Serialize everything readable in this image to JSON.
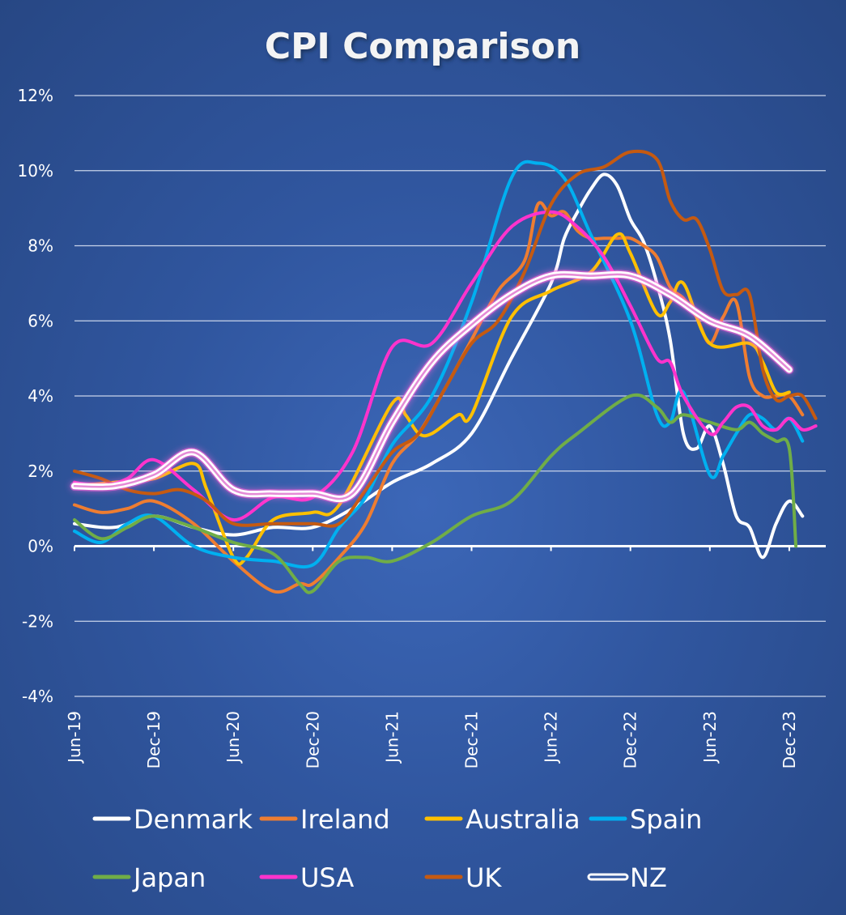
{
  "chart_data": {
    "type": "line",
    "title": "CPI Comparison",
    "xlabel": "",
    "ylabel": "",
    "ylim": [
      -4,
      12
    ],
    "y_ticks": [
      -4,
      -2,
      0,
      2,
      4,
      6,
      8,
      10,
      12
    ],
    "y_tick_labels": [
      "-4%",
      "-2%",
      "0%",
      "2%",
      "4%",
      "6%",
      "8%",
      "10%",
      "12%"
    ],
    "x_tick_labels": [
      "Jun-19",
      "Dec-19",
      "Jun-20",
      "Dec-20",
      "Jun-21",
      "Dec-21",
      "Jun-22",
      "Dec-22",
      "Jun-23",
      "Dec-23"
    ],
    "x_ticks_months_from_jun19": [
      0,
      6,
      12,
      18,
      24,
      30,
      36,
      42,
      48,
      54
    ],
    "x_range_months": [
      0,
      57
    ],
    "grid": "horizontal",
    "legend_position": "bottom",
    "series": [
      {
        "name": "Denmark",
        "color": "#ffffff",
        "points": [
          [
            0,
            0.6
          ],
          [
            3,
            0.5
          ],
          [
            6,
            0.8
          ],
          [
            9,
            0.5
          ],
          [
            12,
            0.3
          ],
          [
            15,
            0.5
          ],
          [
            18,
            0.5
          ],
          [
            21,
            1.0
          ],
          [
            24,
            1.7
          ],
          [
            27,
            2.2
          ],
          [
            30,
            3.0
          ],
          [
            33,
            5.0
          ],
          [
            36,
            7.0
          ],
          [
            37,
            8.2
          ],
          [
            38,
            8.9
          ],
          [
            39,
            9.5
          ],
          [
            40,
            9.9
          ],
          [
            41,
            9.6
          ],
          [
            42,
            8.7
          ],
          [
            43,
            8.1
          ],
          [
            44,
            7.0
          ],
          [
            45,
            5.5
          ],
          [
            46,
            3.0
          ],
          [
            47,
            2.6
          ],
          [
            48,
            3.2
          ],
          [
            49,
            2.2
          ],
          [
            50,
            0.8
          ],
          [
            51,
            0.5
          ],
          [
            52,
            -0.3
          ],
          [
            53,
            0.6
          ],
          [
            54,
            1.2
          ],
          [
            55,
            0.8
          ]
        ]
      },
      {
        "name": "Ireland",
        "color": "#ee7d31",
        "points": [
          [
            0,
            1.1
          ],
          [
            2,
            0.9
          ],
          [
            4,
            1.0
          ],
          [
            6,
            1.2
          ],
          [
            9,
            0.6
          ],
          [
            12,
            -0.4
          ],
          [
            15,
            -1.2
          ],
          [
            17,
            -1.0
          ],
          [
            18,
            -1.0
          ],
          [
            20,
            -0.3
          ],
          [
            22,
            0.6
          ],
          [
            24,
            2.2
          ],
          [
            26,
            3.0
          ],
          [
            28,
            4.2
          ],
          [
            30,
            5.5
          ],
          [
            32,
            6.8
          ],
          [
            34,
            7.6
          ],
          [
            35,
            9.1
          ],
          [
            36,
            8.8
          ],
          [
            37,
            8.9
          ],
          [
            38,
            8.4
          ],
          [
            39,
            8.2
          ],
          [
            40,
            8.2
          ],
          [
            41,
            8.2
          ],
          [
            42,
            8.2
          ],
          [
            43,
            8.0
          ],
          [
            44,
            7.7
          ],
          [
            45,
            6.9
          ],
          [
            46,
            6.6
          ],
          [
            47,
            6.1
          ],
          [
            48,
            5.4
          ],
          [
            49,
            6.1
          ],
          [
            50,
            6.5
          ],
          [
            51,
            4.5
          ],
          [
            52,
            4.0
          ],
          [
            53,
            4.0
          ],
          [
            54,
            4.0
          ],
          [
            55,
            3.5
          ]
        ]
      },
      {
        "name": "Australia",
        "color": "#ffc000",
        "points": [
          [
            0,
            1.6
          ],
          [
            3,
            1.7
          ],
          [
            6,
            1.8
          ],
          [
            9,
            2.2
          ],
          [
            10,
            1.5
          ],
          [
            12,
            -0.3
          ],
          [
            13,
            -0.3
          ],
          [
            15,
            0.7
          ],
          [
            18,
            0.9
          ],
          [
            20,
            1.1
          ],
          [
            24,
            3.8
          ],
          [
            25,
            3.5
          ],
          [
            26,
            3.0
          ],
          [
            27,
            3.0
          ],
          [
            29,
            3.5
          ],
          [
            30,
            3.5
          ],
          [
            33,
            6.1
          ],
          [
            36,
            6.8
          ],
          [
            39,
            7.3
          ],
          [
            41,
            8.3
          ],
          [
            42,
            7.8
          ],
          [
            44,
            6.2
          ],
          [
            45,
            6.5
          ],
          [
            46,
            7.0
          ],
          [
            48,
            5.4
          ],
          [
            51,
            5.4
          ],
          [
            52,
            4.9
          ],
          [
            53,
            4.1
          ],
          [
            54,
            4.1
          ]
        ]
      },
      {
        "name": "Spain",
        "color": "#00b0f0",
        "points": [
          [
            0,
            0.4
          ],
          [
            2,
            0.1
          ],
          [
            4,
            0.6
          ],
          [
            6,
            0.8
          ],
          [
            9,
            0.0
          ],
          [
            12,
            -0.3
          ],
          [
            15,
            -0.4
          ],
          [
            18,
            -0.5
          ],
          [
            20,
            0.5
          ],
          [
            22,
            1.3
          ],
          [
            24,
            2.7
          ],
          [
            27,
            4.0
          ],
          [
            30,
            6.5
          ],
          [
            33,
            9.8
          ],
          [
            35,
            10.2
          ],
          [
            37,
            9.8
          ],
          [
            39,
            8.3
          ],
          [
            42,
            6.0
          ],
          [
            44,
            3.5
          ],
          [
            45,
            3.3
          ],
          [
            46,
            4.1
          ],
          [
            48,
            1.9
          ],
          [
            49,
            2.4
          ],
          [
            50,
            3.0
          ],
          [
            51,
            3.5
          ],
          [
            52,
            3.4
          ],
          [
            53,
            3.1
          ],
          [
            54,
            3.4
          ],
          [
            55,
            2.8
          ]
        ]
      },
      {
        "name": "Japan",
        "color": "#70ad47",
        "points": [
          [
            0,
            0.7
          ],
          [
            2,
            0.2
          ],
          [
            4,
            0.5
          ],
          [
            6,
            0.8
          ],
          [
            9,
            0.5
          ],
          [
            12,
            0.1
          ],
          [
            15,
            -0.2
          ],
          [
            17,
            -1.0
          ],
          [
            18,
            -1.2
          ],
          [
            20,
            -0.4
          ],
          [
            22,
            -0.3
          ],
          [
            24,
            -0.4
          ],
          [
            27,
            0.1
          ],
          [
            30,
            0.8
          ],
          [
            33,
            1.2
          ],
          [
            36,
            2.4
          ],
          [
            38,
            3.0
          ],
          [
            42,
            4.0
          ],
          [
            44,
            3.7
          ],
          [
            45,
            3.3
          ],
          [
            46,
            3.5
          ],
          [
            48,
            3.3
          ],
          [
            50,
            3.1
          ],
          [
            51,
            3.3
          ],
          [
            52,
            3.0
          ],
          [
            53,
            2.8
          ],
          [
            54,
            2.6
          ],
          [
            54.5,
            0.0
          ]
        ]
      },
      {
        "name": "USA",
        "color": "#ff33cc",
        "points": [
          [
            0,
            1.7
          ],
          [
            2,
            1.6
          ],
          [
            4,
            1.8
          ],
          [
            6,
            2.3
          ],
          [
            9,
            1.5
          ],
          [
            12,
            0.7
          ],
          [
            15,
            1.3
          ],
          [
            18,
            1.3
          ],
          [
            21,
            2.5
          ],
          [
            24,
            5.3
          ],
          [
            27,
            5.4
          ],
          [
            30,
            7.0
          ],
          [
            33,
            8.5
          ],
          [
            36,
            8.9
          ],
          [
            38,
            8.5
          ],
          [
            40,
            7.7
          ],
          [
            42,
            6.4
          ],
          [
            44,
            5.0
          ],
          [
            45,
            4.9
          ],
          [
            46,
            4.0
          ],
          [
            48,
            3.0
          ],
          [
            49,
            3.3
          ],
          [
            50,
            3.7
          ],
          [
            51,
            3.7
          ],
          [
            52,
            3.2
          ],
          [
            53,
            3.1
          ],
          [
            54,
            3.4
          ],
          [
            55,
            3.1
          ],
          [
            56,
            3.2
          ]
        ]
      },
      {
        "name": "UK",
        "color": "#c55a11",
        "points": [
          [
            0,
            2.0
          ],
          [
            2,
            1.8
          ],
          [
            4,
            1.5
          ],
          [
            6,
            1.4
          ],
          [
            8,
            1.5
          ],
          [
            10,
            1.2
          ],
          [
            12,
            0.6
          ],
          [
            15,
            0.6
          ],
          [
            18,
            0.6
          ],
          [
            20,
            0.6
          ],
          [
            22,
            1.5
          ],
          [
            24,
            2.5
          ],
          [
            26,
            3.0
          ],
          [
            28,
            4.2
          ],
          [
            30,
            5.4
          ],
          [
            32,
            6.0
          ],
          [
            34,
            7.3
          ],
          [
            36,
            9.1
          ],
          [
            38,
            9.9
          ],
          [
            40,
            10.1
          ],
          [
            42,
            10.5
          ],
          [
            44,
            10.3
          ],
          [
            45,
            9.2
          ],
          [
            46,
            8.7
          ],
          [
            47,
            8.7
          ],
          [
            48,
            7.9
          ],
          [
            49,
            6.8
          ],
          [
            50,
            6.7
          ],
          [
            51,
            6.7
          ],
          [
            52,
            4.7
          ],
          [
            53,
            3.9
          ],
          [
            54,
            4.0
          ],
          [
            55,
            4.0
          ],
          [
            56,
            3.4
          ]
        ]
      },
      {
        "name": "NZ",
        "color": "#ffffff",
        "style": "double",
        "points": [
          [
            0,
            1.6
          ],
          [
            3,
            1.6
          ],
          [
            6,
            1.9
          ],
          [
            9,
            2.5
          ],
          [
            12,
            1.5
          ],
          [
            15,
            1.4
          ],
          [
            18,
            1.4
          ],
          [
            21,
            1.4
          ],
          [
            24,
            3.3
          ],
          [
            27,
            4.9
          ],
          [
            30,
            5.9
          ],
          [
            33,
            6.7
          ],
          [
            36,
            7.2
          ],
          [
            39,
            7.2
          ],
          [
            42,
            7.2
          ],
          [
            45,
            6.7
          ],
          [
            48,
            6.0
          ],
          [
            51,
            5.6
          ],
          [
            54,
            4.7
          ]
        ]
      }
    ]
  }
}
